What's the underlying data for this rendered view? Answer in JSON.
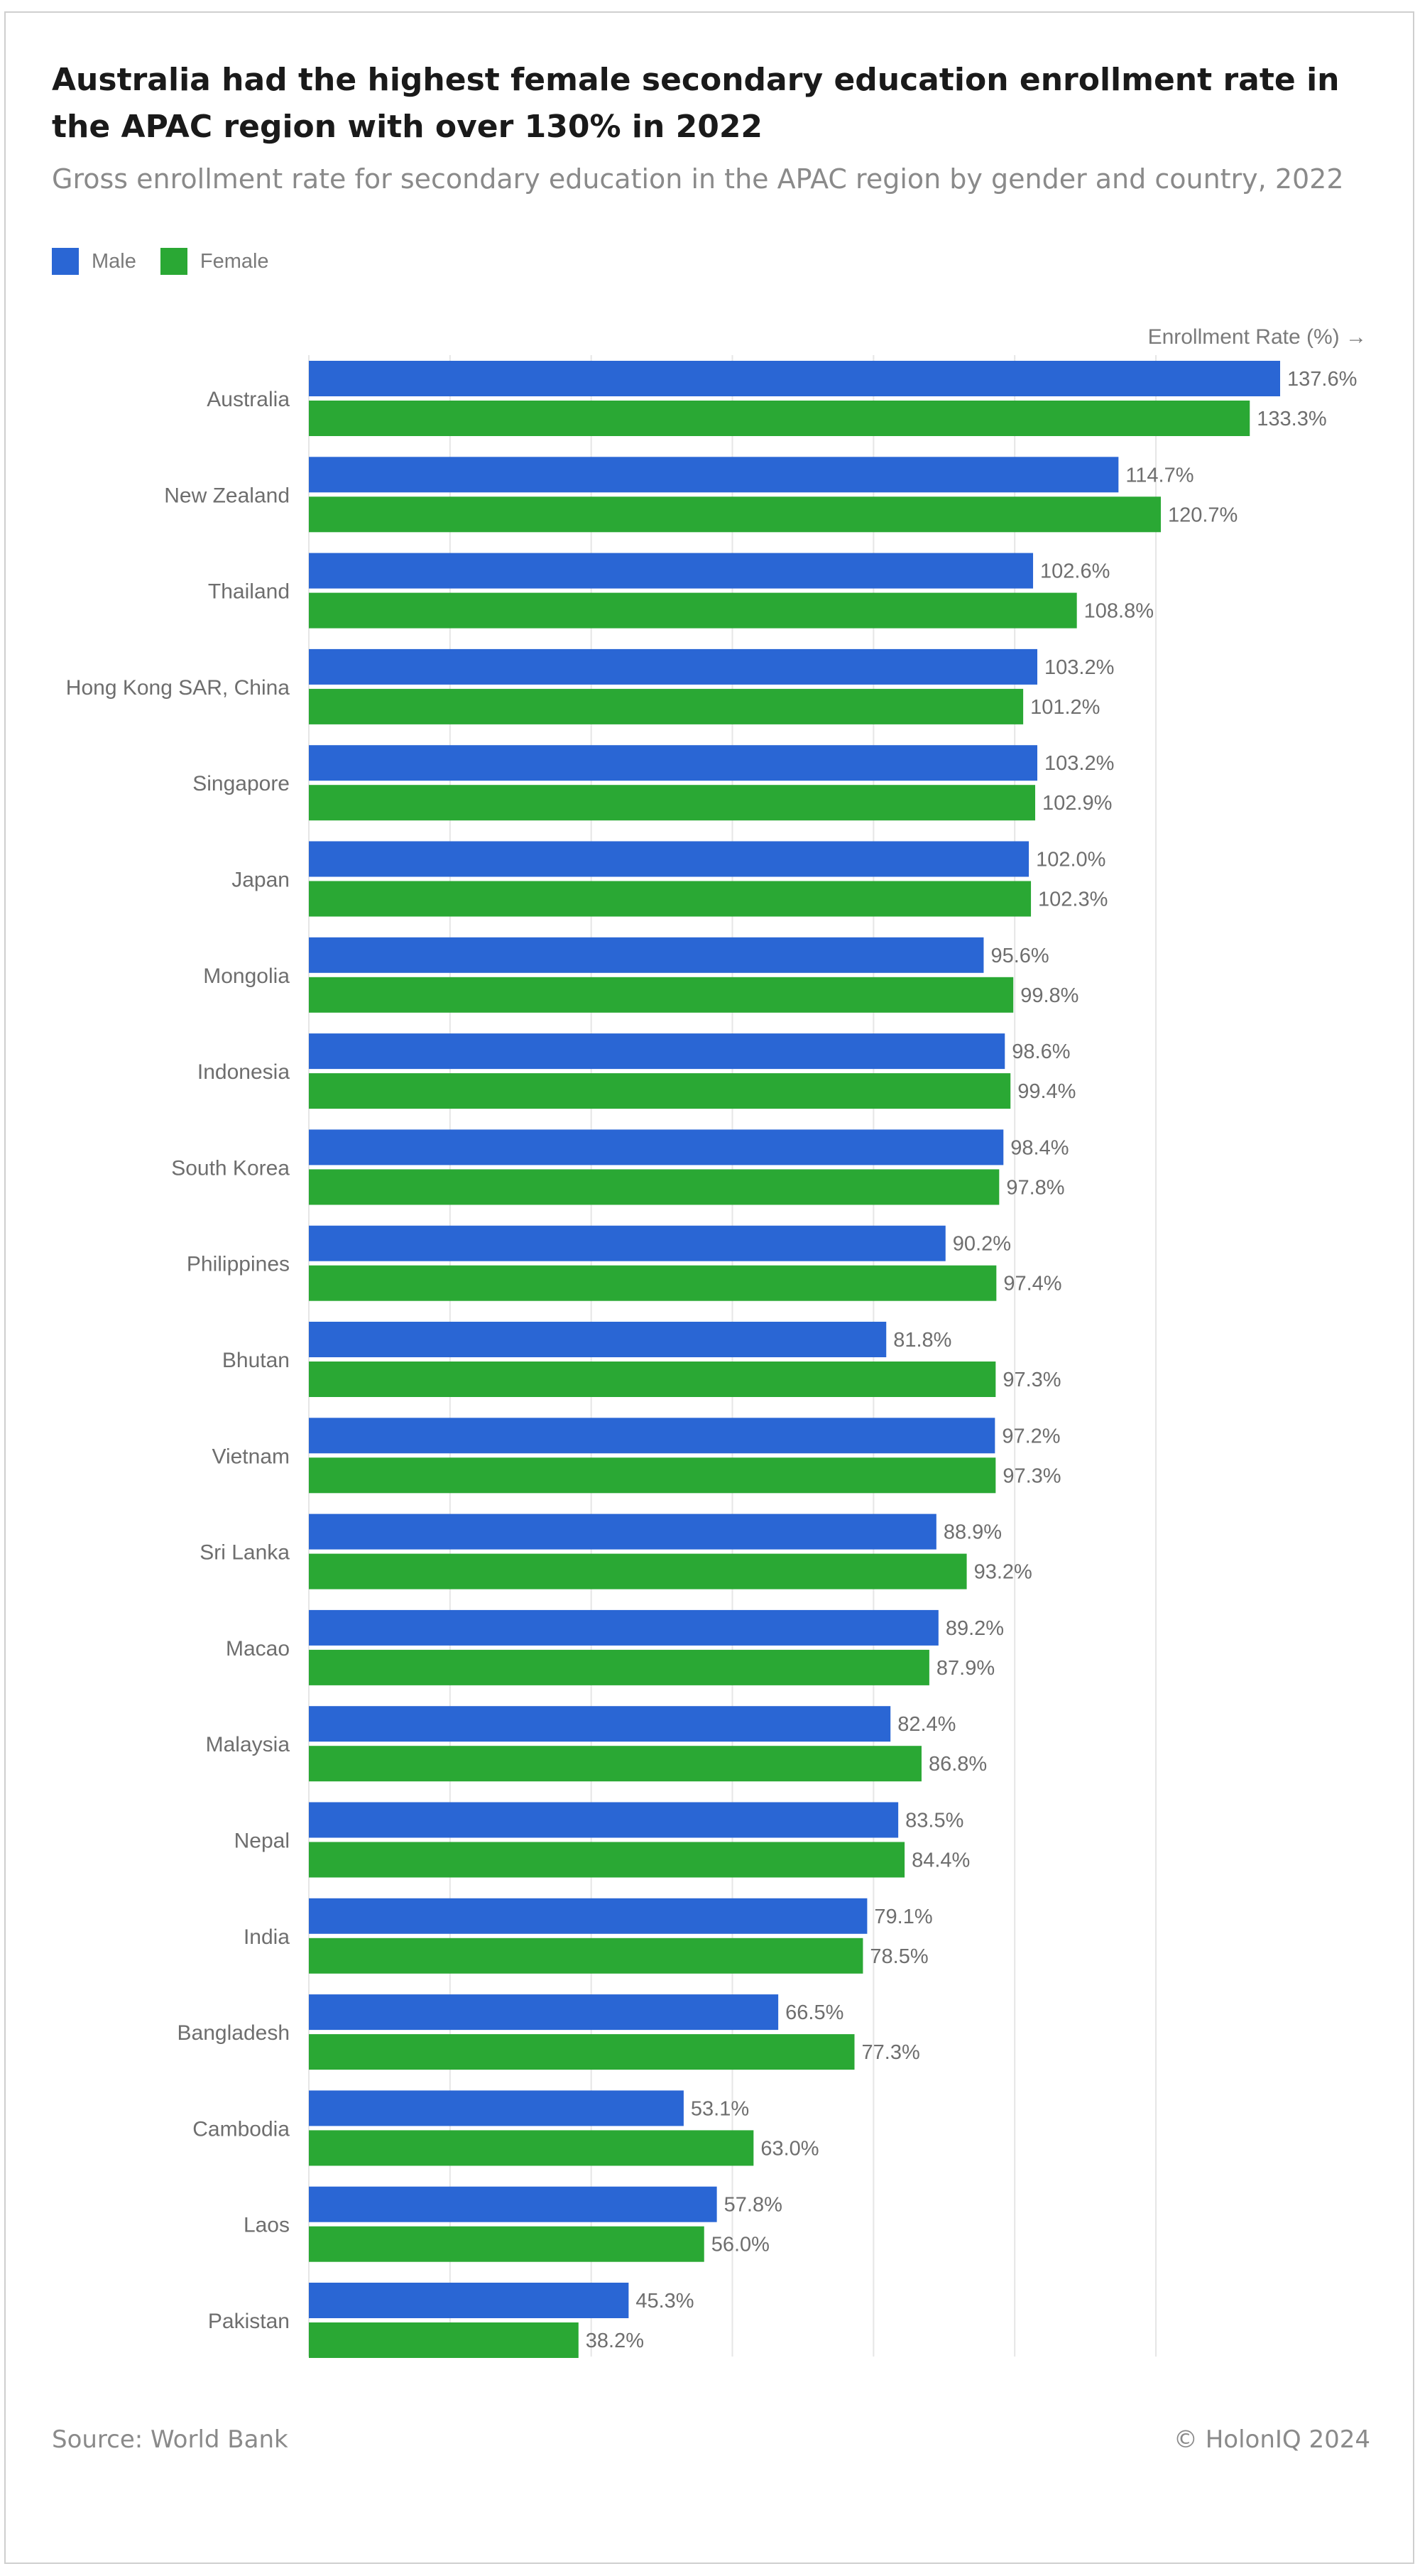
{
  "header": {
    "title": "Australia had the highest female secondary education enrollment rate in the APAC region with over 130% in 2022",
    "subtitle": "Gross enrollment rate for secondary education in the APAC region by gender and country, 2022"
  },
  "footer": {
    "source": "Source: World Bank",
    "copyright": "© HolonIQ 2024"
  },
  "colors": {
    "male": "#2A66D4",
    "female": "#2AA834",
    "grid": "#e6e6e6",
    "label": "#6e6e6e"
  },
  "chart_data": {
    "type": "bar",
    "orientation": "horizontal",
    "title": "Australia had the highest female secondary education enrollment rate in the APAC region with over 130% in 2022",
    "subtitle": "Gross enrollment rate for secondary education in the APAC region by gender and country, 2022",
    "xlabel": "Enrollment Rate (%) →",
    "xlim": [
      0,
      140
    ],
    "grid": true,
    "legend_position": "top-left",
    "categories": [
      "Australia",
      "New Zealand",
      "Thailand",
      "Hong Kong SAR, China",
      "Singapore",
      "Japan",
      "Mongolia",
      "Indonesia",
      "South Korea",
      "Philippines",
      "Bhutan",
      "Vietnam",
      "Sri Lanka",
      "Macao",
      "Malaysia",
      "Nepal",
      "India",
      "Bangladesh",
      "Cambodia",
      "Laos",
      "Pakistan"
    ],
    "series": [
      {
        "name": "Male",
        "color": "#2A66D4",
        "values": [
          137.6,
          114.7,
          102.6,
          103.2,
          103.2,
          102.0,
          95.6,
          98.6,
          98.4,
          90.2,
          81.8,
          97.2,
          88.9,
          89.2,
          82.4,
          83.5,
          79.1,
          66.5,
          53.1,
          57.8,
          45.3
        ],
        "labels": [
          "137.6%",
          "114.7%",
          "102.6%",
          "103.2%",
          "103.2%",
          "102.0%",
          "95.6%",
          "98.6%",
          "98.4%",
          "90.2%",
          "81.8%",
          "97.2%",
          "88.9%",
          "89.2%",
          "82.4%",
          "83.5%",
          "79.1%",
          "66.5%",
          "53.1%",
          "57.8%",
          "45.3%"
        ]
      },
      {
        "name": "Female",
        "color": "#2AA834",
        "values": [
          133.3,
          120.7,
          108.8,
          101.2,
          102.9,
          102.3,
          99.8,
          99.4,
          97.8,
          97.4,
          97.3,
          97.3,
          93.2,
          87.9,
          86.8,
          84.4,
          78.5,
          77.3,
          63.0,
          56.0,
          38.2
        ],
        "labels": [
          "133.3%",
          "120.7%",
          "108.8%",
          "101.2%",
          "102.9%",
          "102.3%",
          "99.8%",
          "99.4%",
          "97.8%",
          "97.4%",
          "97.3%",
          "97.3%",
          "93.2%",
          "87.9%",
          "86.8%",
          "84.4%",
          "78.5%",
          "77.3%",
          "63.0%",
          "56.0%",
          "38.2%"
        ]
      }
    ]
  }
}
